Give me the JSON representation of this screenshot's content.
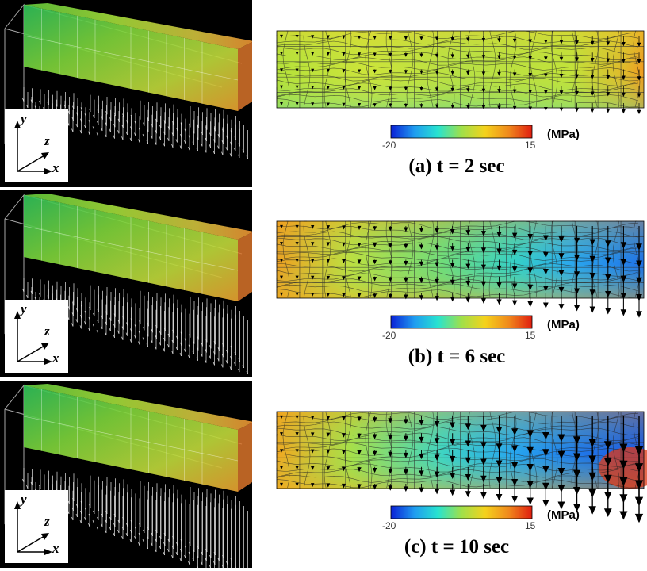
{
  "colorbar": {
    "min_label": "-20",
    "max_label": "15",
    "unit": "(MPa)",
    "colors": [
      "#0a1fd6",
      "#1f9cf0",
      "#27e3d0",
      "#9fe04a",
      "#f4d21c",
      "#f08a1c",
      "#e01e10"
    ]
  },
  "axes": {
    "x": "x",
    "y": "y",
    "z": "z"
  },
  "panels": [
    {
      "caption": "(a) t = 2 sec",
      "deflection": 0.15
    },
    {
      "caption": "(b) t = 6 sec",
      "deflection": 0.6
    },
    {
      "caption": "(c) t = 10 sec",
      "deflection": 1.0
    }
  ]
}
